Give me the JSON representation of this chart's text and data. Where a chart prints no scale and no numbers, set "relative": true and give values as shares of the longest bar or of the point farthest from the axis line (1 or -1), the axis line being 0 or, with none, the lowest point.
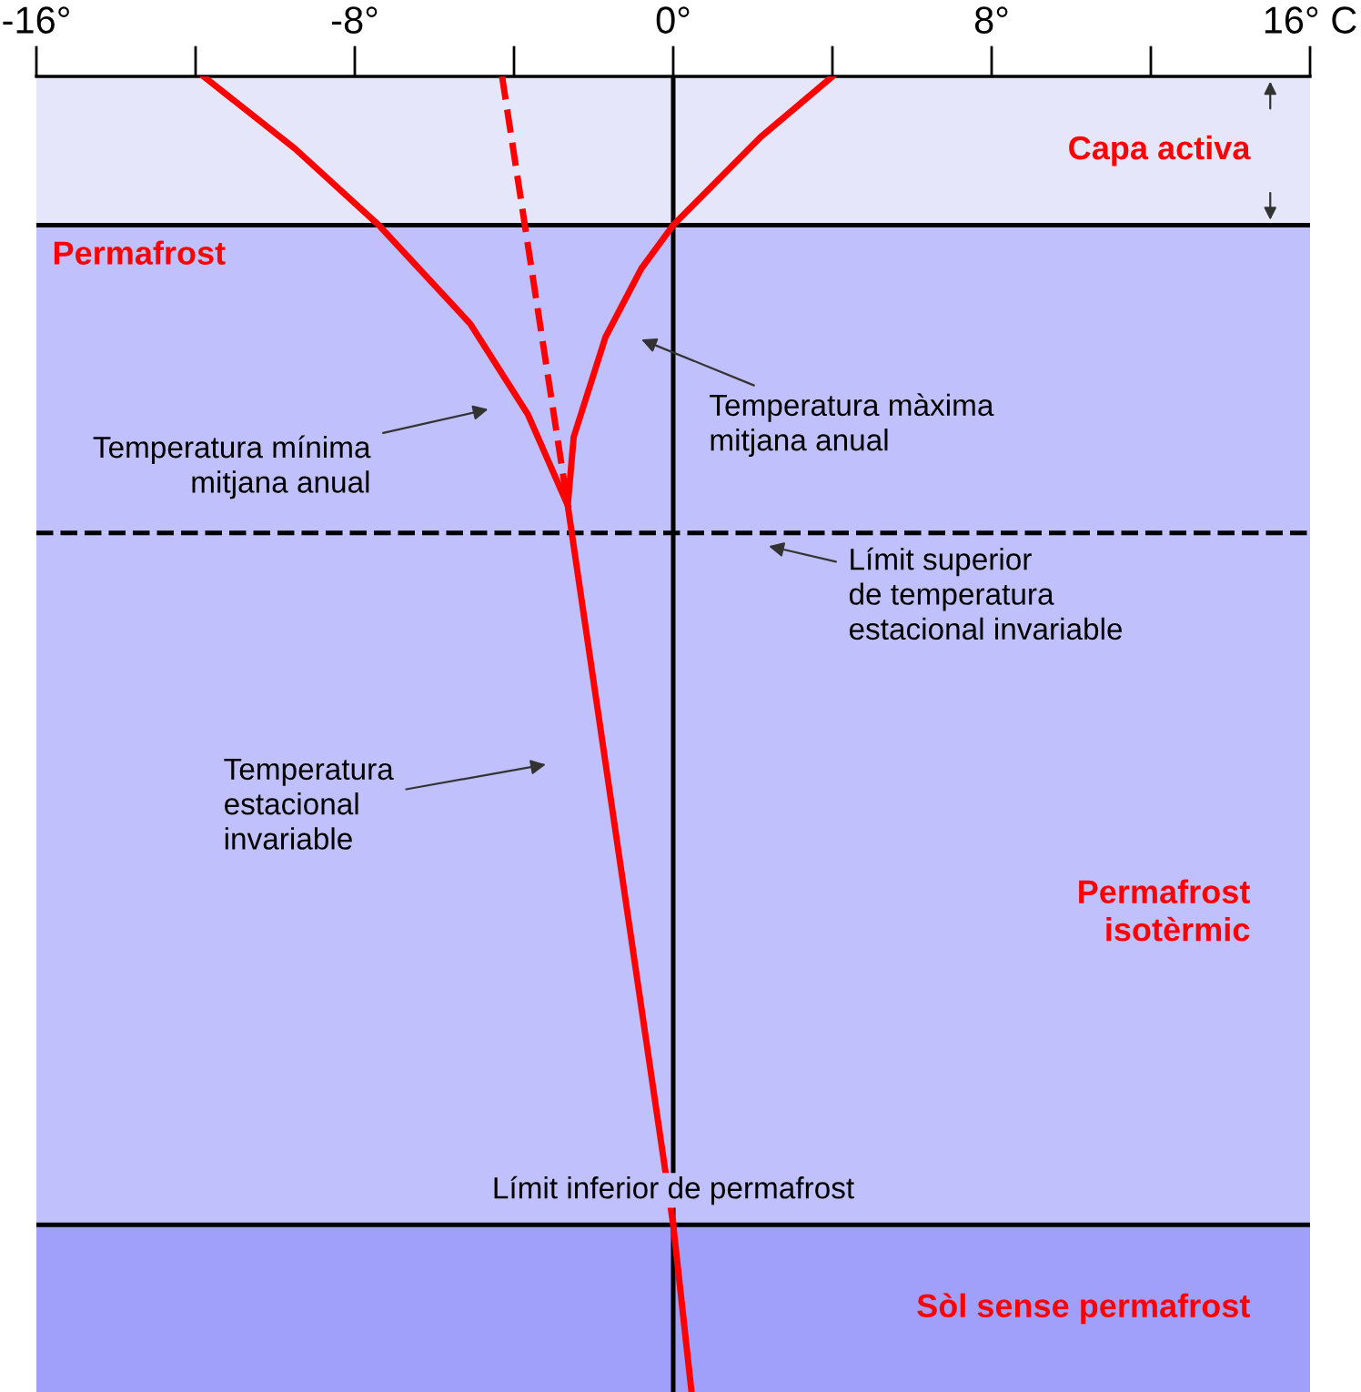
{
  "chart_data": {
    "type": "line",
    "relative": true,
    "xlim": [
      -16,
      16
    ],
    "xticks": [
      {
        "value": -16,
        "label": "-16°"
      },
      {
        "value": -8,
        "label": "-8°"
      },
      {
        "value": 0,
        "label": "0°"
      },
      {
        "value": 8,
        "label": "8°"
      },
      {
        "value": 16,
        "label": "16° C"
      }
    ],
    "grid": false,
    "legend": false,
    "tick_labels": "x",
    "series": [
      {
        "color": "#ff0000",
        "line_style": "solid",
        "x": [
          4,
          2.2,
          0,
          -0.8,
          -1.7,
          -2.5,
          -2.65,
          0,
          0.46
        ],
        "values": [
          0,
          -0.046,
          -0.113,
          -0.146,
          -0.198,
          -0.274,
          -0.326,
          -0.873,
          -1
        ]
      },
      {
        "color": "#ff0000",
        "line_style": "solid",
        "x": [
          -11.8,
          -9.5,
          -7.4,
          -5.1,
          -3.65,
          -2.65
        ],
        "values": [
          0,
          -0.055,
          -0.113,
          -0.188,
          -0.257,
          -0.326
        ]
      },
      {
        "color": "#ff0000",
        "line_style": "dashed",
        "x": [
          -4.3,
          -2.65
        ],
        "values": [
          0,
          -0.326
        ]
      }
    ],
    "bands": [
      {
        "axis": "y",
        "from": 0,
        "to": -0.113,
        "label": "Capa activa",
        "color": "#e6e6fa"
      },
      {
        "axis": "y",
        "from": -0.113,
        "to": -0.347,
        "label": "Permafrost",
        "color": "#c0c0fc"
      },
      {
        "axis": "y",
        "from": -0.347,
        "to": -0.873,
        "label": "Permafrost\nisotèrmic",
        "color": "#c0c0fc"
      },
      {
        "axis": "y",
        "from": -0.873,
        "to": -1,
        "label": "Sòl sense permafrost",
        "color": "#a0a0fa"
      }
    ],
    "ref_lines": [
      {
        "axis": "x",
        "value": 0,
        "color": "#000000",
        "line_style": "solid"
      },
      {
        "axis": "y",
        "value": -0.113,
        "color": "#000000",
        "line_style": "solid"
      },
      {
        "axis": "y",
        "value": -0.347,
        "color": "#000000",
        "line_style": "dashed"
      },
      {
        "axis": "y",
        "value": -0.873,
        "color": "#000000",
        "line_style": "solid"
      }
    ],
    "annotations": [
      "Temperatura mínima\nmitjana anual",
      "Temperatura màxima\nmitjana anual",
      "Límit superior\nde temperatura\nestacional invariable",
      "Temperatura\nestacional\ninvariable",
      {
        "text": "Límit inferior de permafrost",
        "x": 0,
        "y": -0.873
      }
    ]
  }
}
